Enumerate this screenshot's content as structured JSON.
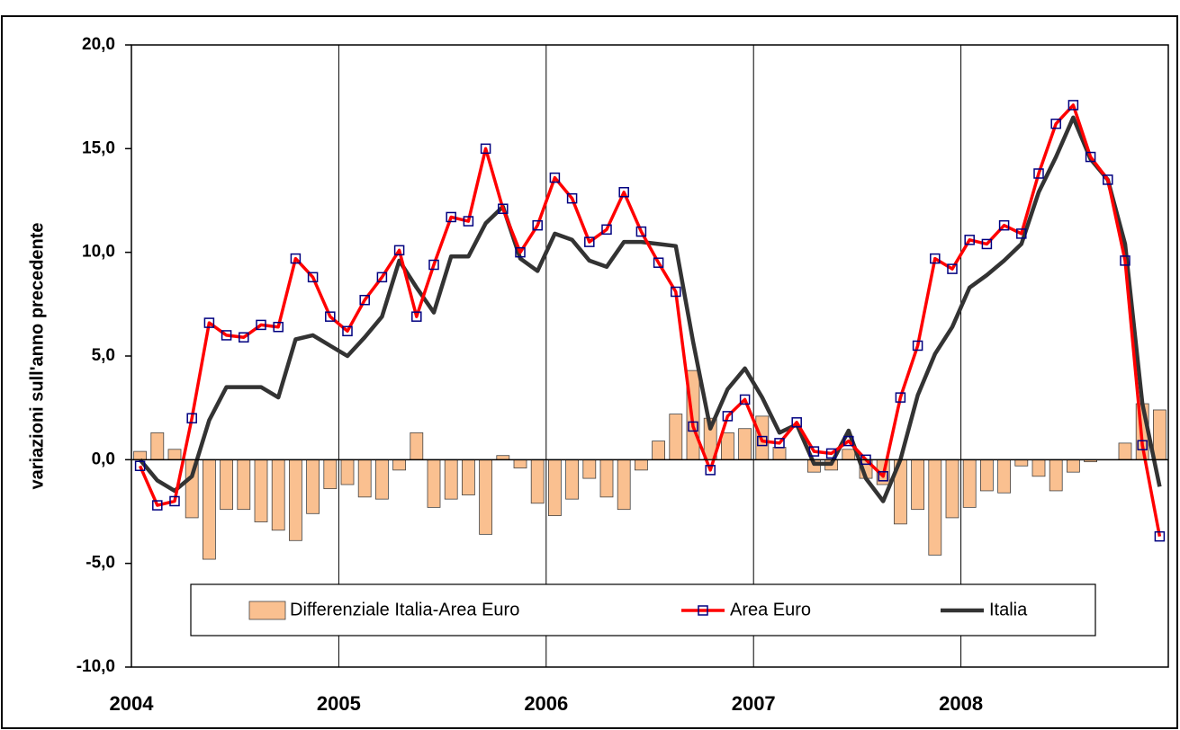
{
  "chart_data": {
    "type": "bar_line",
    "y_label": "variazioni sull'anno precedente",
    "categories": [
      "2004",
      null,
      null,
      null,
      null,
      null,
      null,
      null,
      null,
      null,
      null,
      null,
      "2005",
      null,
      null,
      null,
      null,
      null,
      null,
      null,
      null,
      null,
      null,
      null,
      "2006",
      null,
      null,
      null,
      null,
      null,
      null,
      null,
      null,
      null,
      null,
      null,
      "2007",
      null,
      null,
      null,
      null,
      null,
      null,
      null,
      null,
      null,
      null,
      null,
      "2008",
      null,
      null,
      null,
      null,
      null,
      null,
      null,
      null,
      null,
      null,
      null
    ],
    "series": [
      {
        "name": "Differenziale Italia-Area Euro",
        "type": "bar",
        "color": "#fac090",
        "values": [
          0.4,
          1.3,
          0.5,
          -2.8,
          -4.8,
          -2.4,
          -2.4,
          -3.0,
          -3.4,
          -3.9,
          -2.6,
          -1.4,
          -1.2,
          -1.8,
          -1.9,
          -0.5,
          1.3,
          -2.3,
          -1.9,
          -1.7,
          -3.6,
          0.2,
          -0.4,
          -2.1,
          -2.7,
          -1.9,
          -0.9,
          -1.8,
          -2.4,
          -0.5,
          0.9,
          2.2,
          4.3,
          2.0,
          1.3,
          1.5,
          2.1,
          0.6,
          0.0,
          -0.6,
          -0.5,
          0.5,
          -0.9,
          -1.2,
          -3.1,
          -2.4,
          -4.6,
          -2.8,
          -2.3,
          -1.5,
          -1.6,
          -0.3,
          -0.8,
          -1.5,
          -0.6,
          -0.1,
          0.0,
          0.8,
          2.7,
          2.4
        ]
      },
      {
        "name": "Area Euro",
        "type": "line",
        "color": "#ff0000",
        "marker_color": "#000080",
        "values": [
          -0.3,
          -2.2,
          -2.0,
          2.0,
          6.6,
          6.0,
          5.9,
          6.5,
          6.4,
          9.7,
          8.8,
          6.9,
          6.2,
          7.7,
          8.8,
          10.1,
          6.9,
          9.4,
          11.7,
          11.5,
          15.0,
          12.1,
          10.0,
          11.3,
          13.6,
          12.6,
          10.5,
          11.1,
          12.9,
          11.0,
          9.5,
          8.1,
          1.6,
          -0.5,
          2.1,
          2.9,
          0.9,
          0.8,
          1.8,
          0.4,
          0.3,
          0.9,
          0.0,
          -0.8,
          3.0,
          5.5,
          9.7,
          9.2,
          10.6,
          10.4,
          11.3,
          10.9,
          13.8,
          16.2,
          17.1,
          14.6,
          13.5,
          9.6,
          0.7,
          -3.7
        ]
      },
      {
        "name": "Italia",
        "type": "line",
        "color": "#333333",
        "values": [
          0.0,
          -1.0,
          -1.5,
          -0.8,
          1.9,
          3.5,
          3.5,
          3.5,
          3.0,
          5.8,
          6.0,
          5.5,
          5.0,
          5.9,
          6.9,
          9.6,
          8.3,
          7.1,
          9.8,
          9.8,
          11.4,
          12.2,
          9.7,
          9.1,
          10.9,
          10.6,
          9.6,
          9.3,
          10.5,
          10.5,
          10.4,
          10.3,
          5.7,
          1.5,
          3.4,
          4.4,
          3.0,
          1.3,
          1.7,
          -0.2,
          -0.2,
          1.4,
          -0.9,
          -2.0,
          0.0,
          3.1,
          5.1,
          6.4,
          8.3,
          8.9,
          9.6,
          10.4,
          12.9,
          14.6,
          16.5,
          14.5,
          13.5,
          10.4,
          2.7,
          -1.3
        ]
      }
    ],
    "ylim": [
      -10,
      20
    ],
    "yticks": [
      {
        "value": -10,
        "label": "-10,0"
      },
      {
        "value": -5,
        "label": "-5,0"
      },
      {
        "value": 0,
        "label": "0,0"
      },
      {
        "value": 5,
        "label": "5,0"
      },
      {
        "value": 10,
        "label": "10,0"
      },
      {
        "value": 15,
        "label": "15,0"
      },
      {
        "value": 20,
        "label": "20,0"
      }
    ],
    "grid": "x",
    "legend": "bottom"
  }
}
